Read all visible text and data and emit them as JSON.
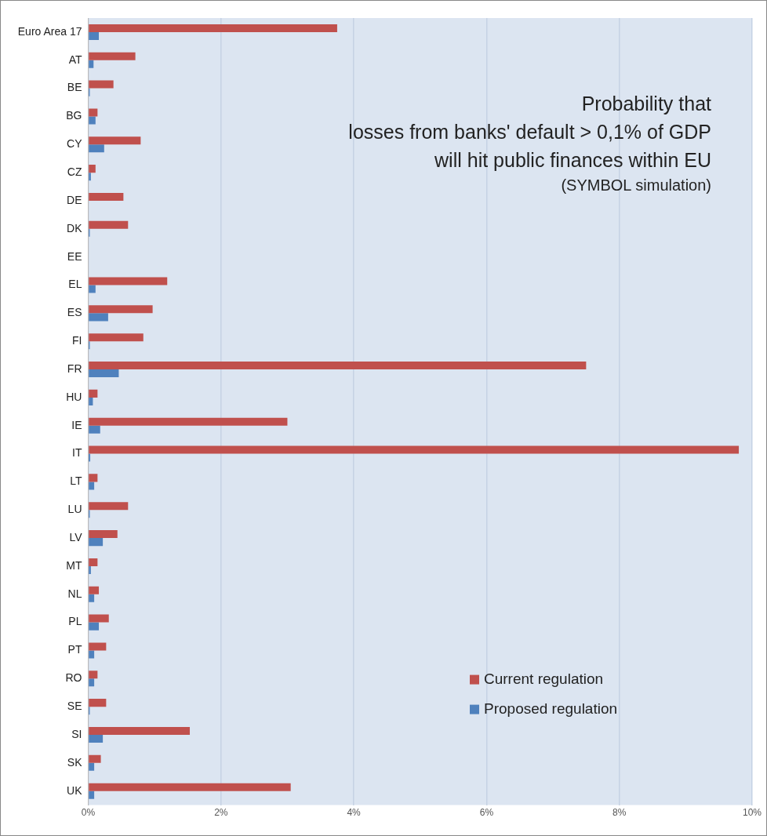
{
  "chart_data": {
    "type": "bar",
    "orientation": "horizontal",
    "title": "Probability that\nlosses from banks' default > 0,1% of GDP\nwill hit public finances within EU",
    "subtitle": "(SYMBOL simulation)",
    "categories": [
      "Euro Area 17",
      "AT",
      "BE",
      "BG",
      "CY",
      "CZ",
      "DE",
      "DK",
      "EE",
      "EL",
      "ES",
      "FI",
      "FR",
      "HU",
      "IE",
      "IT",
      "LT",
      "LU",
      "LV",
      "MT",
      "NL",
      "PL",
      "PT",
      "RO",
      "SE",
      "SI",
      "SK",
      "UK"
    ],
    "series": [
      {
        "name": "Current regulation",
        "color": "#c0504d",
        "values": [
          3.75,
          0.71,
          0.38,
          0.14,
          0.79,
          0.11,
          0.53,
          0.6,
          null,
          1.19,
          0.97,
          0.83,
          7.5,
          0.14,
          3.0,
          9.8,
          0.14,
          0.6,
          0.44,
          0.14,
          0.16,
          0.31,
          0.27,
          0.14,
          0.27,
          1.53,
          0.19,
          3.05
        ]
      },
      {
        "name": "Proposed regulation",
        "color": "#4f81bd",
        "values": [
          0.16,
          0.08,
          0.01,
          0.11,
          0.24,
          0.04,
          null,
          0.01,
          null,
          0.11,
          0.3,
          0.01,
          0.46,
          0.07,
          0.18,
          0.03,
          0.09,
          0.01,
          0.22,
          0.04,
          0.09,
          0.16,
          0.09,
          0.09,
          0.01,
          0.22,
          0.09,
          0.09
        ]
      }
    ],
    "xlim": [
      0,
      10
    ],
    "xticks": [
      {
        "value": 0,
        "label": "0%"
      },
      {
        "value": 2,
        "label": "2%"
      },
      {
        "value": 4,
        "label": "4%"
      },
      {
        "value": 6,
        "label": "6%"
      },
      {
        "value": 8,
        "label": "8%"
      },
      {
        "value": 10,
        "label": "10%"
      }
    ],
    "grid": "x",
    "legend": "bottom right"
  }
}
